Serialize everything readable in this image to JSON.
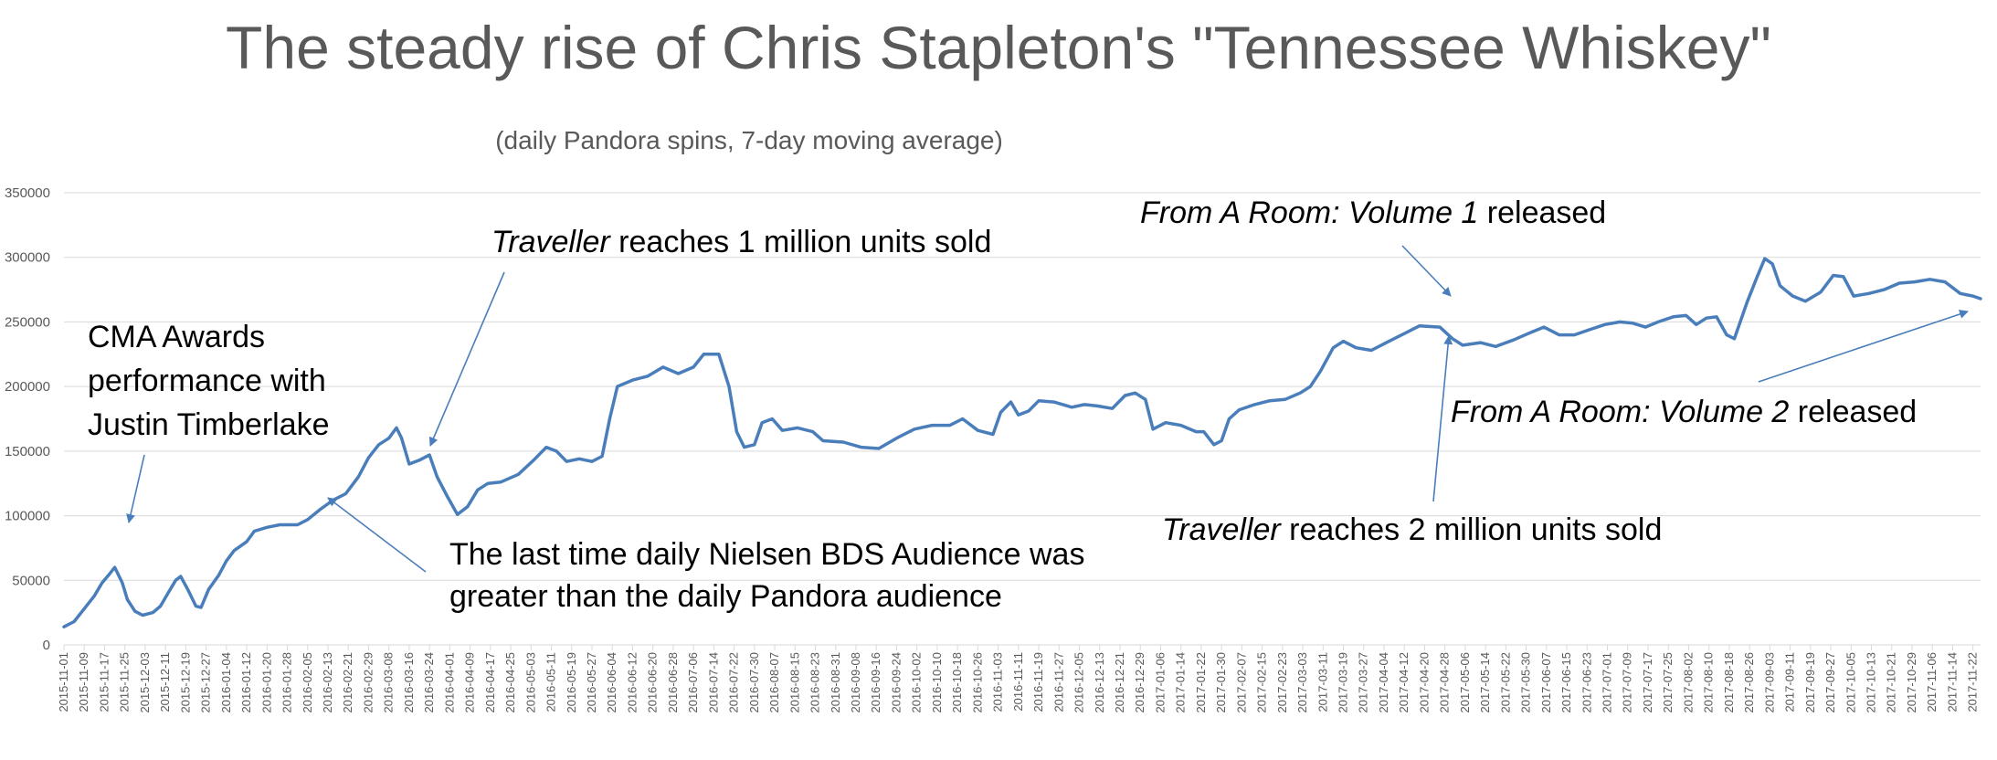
{
  "chart_data": {
    "type": "line",
    "title": "The steady rise of Chris Stapleton's \"Tennessee Whiskey\"",
    "subtitle": "(daily Pandora spins, 7-day moving average)",
    "ylim": [
      0,
      350000
    ],
    "yticks": [
      "0",
      "50000",
      "100000",
      "150000",
      "200000",
      "250000",
      "300000",
      "350000"
    ],
    "grid": true,
    "legend": "none",
    "line_color": "#4a7ebb",
    "x_start": "2015-11-01",
    "x_end": "2017-11-25",
    "xtick_labels": [
      "2015-11-01",
      "2015-11-09",
      "2015-11-17",
      "2015-11-25",
      "2015-12-03",
      "2015-12-11",
      "2015-12-19",
      "2015-12-27",
      "2016-01-04",
      "2016-01-12",
      "2016-01-20",
      "2016-01-28",
      "2016-02-05",
      "2016-02-13",
      "2016-02-21",
      "2016-02-29",
      "2016-03-08",
      "2016-03-16",
      "2016-03-24",
      "2016-04-01",
      "2016-04-09",
      "2016-04-17",
      "2016-04-25",
      "2016-05-03",
      "2016-05-11",
      "2016-05-19",
      "2016-05-27",
      "2016-06-04",
      "2016-06-12",
      "2016-06-20",
      "2016-06-28",
      "2016-07-06",
      "2016-07-14",
      "2016-07-22",
      "2016-07-30",
      "2016-08-07",
      "2016-08-15",
      "2016-08-23",
      "2016-08-31",
      "2016-09-08",
      "2016-09-16",
      "2016-09-24",
      "2016-10-02",
      "2016-10-10",
      "2016-10-18",
      "2016-10-26",
      "2016-11-03",
      "2016-11-11",
      "2016-11-19",
      "2016-11-27",
      "2016-12-05",
      "2016-12-13",
      "2016-12-21",
      "2016-12-29",
      "2017-01-06",
      "2017-01-14",
      "2017-01-22",
      "2017-01-30",
      "2017-02-07",
      "2017-02-15",
      "2017-02-23",
      "2017-03-03",
      "2017-03-11",
      "2017-03-19",
      "2017-03-27",
      "2017-04-04",
      "2017-04-12",
      "2017-04-20",
      "2017-04-28",
      "2017-05-06",
      "2017-05-14",
      "2017-05-22",
      "2017-05-30",
      "2017-06-07",
      "2017-06-15",
      "2017-06-23",
      "2017-07-01",
      "2017-07-09",
      "2017-07-17",
      "2017-07-25",
      "2017-08-02",
      "2017-08-10",
      "2017-08-18",
      "2017-08-26",
      "2017-09-03",
      "2017-09-11",
      "2017-09-19",
      "2017-09-27",
      "2017-10-05",
      "2017-10-13",
      "2017-10-21",
      "2017-10-29",
      "2017-11-06",
      "2017-11-14",
      "2017-11-22"
    ],
    "series": [
      {
        "points": [
          [
            "2015-11-01",
            14000
          ],
          [
            "2015-11-05",
            18000
          ],
          [
            "2015-11-09",
            28000
          ],
          [
            "2015-11-13",
            38000
          ],
          [
            "2015-11-16",
            48000
          ],
          [
            "2015-11-19",
            55000
          ],
          [
            "2015-11-21",
            60000
          ],
          [
            "2015-11-24",
            48000
          ],
          [
            "2015-11-26",
            35000
          ],
          [
            "2015-11-29",
            26000
          ],
          [
            "2015-12-02",
            23000
          ],
          [
            "2015-12-06",
            25000
          ],
          [
            "2015-12-09",
            30000
          ],
          [
            "2015-12-12",
            40000
          ],
          [
            "2015-12-15",
            50000
          ],
          [
            "2015-12-17",
            53000
          ],
          [
            "2015-12-20",
            42000
          ],
          [
            "2015-12-23",
            30000
          ],
          [
            "2015-12-25",
            29000
          ],
          [
            "2015-12-28",
            43000
          ],
          [
            "2016-01-01",
            54000
          ],
          [
            "2016-01-04",
            65000
          ],
          [
            "2016-01-07",
            73000
          ],
          [
            "2016-01-12",
            80000
          ],
          [
            "2016-01-15",
            88000
          ],
          [
            "2016-01-20",
            91000
          ],
          [
            "2016-01-25",
            93000
          ],
          [
            "2016-02-01",
            93000
          ],
          [
            "2016-02-05",
            97000
          ],
          [
            "2016-02-10",
            105000
          ],
          [
            "2016-02-15",
            112000
          ],
          [
            "2016-02-20",
            117000
          ],
          [
            "2016-02-25",
            130000
          ],
          [
            "2016-02-29",
            145000
          ],
          [
            "2016-03-04",
            155000
          ],
          [
            "2016-03-08",
            160000
          ],
          [
            "2016-03-11",
            168000
          ],
          [
            "2016-03-13",
            160000
          ],
          [
            "2016-03-16",
            140000
          ],
          [
            "2016-03-20",
            143000
          ],
          [
            "2016-03-24",
            147000
          ],
          [
            "2016-03-27",
            130000
          ],
          [
            "2016-03-31",
            115000
          ],
          [
            "2016-04-04",
            101000
          ],
          [
            "2016-04-08",
            107000
          ],
          [
            "2016-04-12",
            120000
          ],
          [
            "2016-04-16",
            125000
          ],
          [
            "2016-04-21",
            126000
          ],
          [
            "2016-04-28",
            132000
          ],
          [
            "2016-05-04",
            143000
          ],
          [
            "2016-05-09",
            153000
          ],
          [
            "2016-05-13",
            150000
          ],
          [
            "2016-05-17",
            142000
          ],
          [
            "2016-05-22",
            144000
          ],
          [
            "2016-05-27",
            142000
          ],
          [
            "2016-05-31",
            146000
          ],
          [
            "2016-06-03",
            175000
          ],
          [
            "2016-06-06",
            200000
          ],
          [
            "2016-06-12",
            205000
          ],
          [
            "2016-06-18",
            208000
          ],
          [
            "2016-06-24",
            215000
          ],
          [
            "2016-06-30",
            210000
          ],
          [
            "2016-07-06",
            215000
          ],
          [
            "2016-07-10",
            225000
          ],
          [
            "2016-07-16",
            225000
          ],
          [
            "2016-07-20",
            200000
          ],
          [
            "2016-07-23",
            165000
          ],
          [
            "2016-07-26",
            153000
          ],
          [
            "2016-07-30",
            155000
          ],
          [
            "2016-08-02",
            172000
          ],
          [
            "2016-08-06",
            175000
          ],
          [
            "2016-08-10",
            166000
          ],
          [
            "2016-08-16",
            168000
          ],
          [
            "2016-08-22",
            165000
          ],
          [
            "2016-08-26",
            158000
          ],
          [
            "2016-09-03",
            157000
          ],
          [
            "2016-09-10",
            153000
          ],
          [
            "2016-09-17",
            152000
          ],
          [
            "2016-09-24",
            160000
          ],
          [
            "2016-10-01",
            167000
          ],
          [
            "2016-10-08",
            170000
          ],
          [
            "2016-10-15",
            170000
          ],
          [
            "2016-10-20",
            175000
          ],
          [
            "2016-10-26",
            166000
          ],
          [
            "2016-11-01",
            163000
          ],
          [
            "2016-11-04",
            180000
          ],
          [
            "2016-11-08",
            188000
          ],
          [
            "2016-11-11",
            178000
          ],
          [
            "2016-11-15",
            181000
          ],
          [
            "2016-11-19",
            189000
          ],
          [
            "2016-11-25",
            188000
          ],
          [
            "2016-12-02",
            184000
          ],
          [
            "2016-12-07",
            186000
          ],
          [
            "2016-12-12",
            185000
          ],
          [
            "2016-12-18",
            183000
          ],
          [
            "2016-12-23",
            193000
          ],
          [
            "2016-12-27",
            195000
          ],
          [
            "2016-12-31",
            190000
          ],
          [
            "2017-01-03",
            167000
          ],
          [
            "2017-01-08",
            172000
          ],
          [
            "2017-01-14",
            170000
          ],
          [
            "2017-01-20",
            165000
          ],
          [
            "2017-01-23",
            165000
          ],
          [
            "2017-01-27",
            155000
          ],
          [
            "2017-01-30",
            158000
          ],
          [
            "2017-02-02",
            175000
          ],
          [
            "2017-02-06",
            182000
          ],
          [
            "2017-02-12",
            186000
          ],
          [
            "2017-02-18",
            189000
          ],
          [
            "2017-02-24",
            190000
          ],
          [
            "2017-03-02",
            195000
          ],
          [
            "2017-03-06",
            200000
          ],
          [
            "2017-03-10",
            212000
          ],
          [
            "2017-03-15",
            230000
          ],
          [
            "2017-03-19",
            235000
          ],
          [
            "2017-03-24",
            230000
          ],
          [
            "2017-03-30",
            228000
          ],
          [
            "2017-04-06",
            235000
          ],
          [
            "2017-04-12",
            241000
          ],
          [
            "2017-04-18",
            247000
          ],
          [
            "2017-04-26",
            246000
          ],
          [
            "2017-05-01",
            237000
          ],
          [
            "2017-05-05",
            232000
          ],
          [
            "2017-05-12",
            234000
          ],
          [
            "2017-05-18",
            231000
          ],
          [
            "2017-05-25",
            236000
          ],
          [
            "2017-06-01",
            242000
          ],
          [
            "2017-06-06",
            246000
          ],
          [
            "2017-06-12",
            240000
          ],
          [
            "2017-06-18",
            240000
          ],
          [
            "2017-06-24",
            244000
          ],
          [
            "2017-06-30",
            248000
          ],
          [
            "2017-07-06",
            250000
          ],
          [
            "2017-07-11",
            249000
          ],
          [
            "2017-07-16",
            246000
          ],
          [
            "2017-07-21",
            250000
          ],
          [
            "2017-07-27",
            254000
          ],
          [
            "2017-08-01",
            255000
          ],
          [
            "2017-08-05",
            248000
          ],
          [
            "2017-08-09",
            253000
          ],
          [
            "2017-08-13",
            254000
          ],
          [
            "2017-08-17",
            240000
          ],
          [
            "2017-08-20",
            237000
          ],
          [
            "2017-08-25",
            265000
          ],
          [
            "2017-08-29",
            285000
          ],
          [
            "2017-09-01",
            299000
          ],
          [
            "2017-09-04",
            295000
          ],
          [
            "2017-09-07",
            278000
          ],
          [
            "2017-09-12",
            270000
          ],
          [
            "2017-09-17",
            266000
          ],
          [
            "2017-09-23",
            273000
          ],
          [
            "2017-09-28",
            286000
          ],
          [
            "2017-10-02",
            285000
          ],
          [
            "2017-10-06",
            270000
          ],
          [
            "2017-10-12",
            272000
          ],
          [
            "2017-10-18",
            275000
          ],
          [
            "2017-10-24",
            280000
          ],
          [
            "2017-10-30",
            281000
          ],
          [
            "2017-11-05",
            283000
          ],
          [
            "2017-11-11",
            281000
          ],
          [
            "2017-11-17",
            272000
          ],
          [
            "2017-11-22",
            270000
          ],
          [
            "2017-11-25",
            268000
          ]
        ]
      }
    ]
  },
  "annotations": {
    "cma": [
      "CMA Awards",
      "performance with",
      "Justin Timberlake"
    ],
    "traveller1_italic": "Traveller",
    "traveller1_rest": " reaches 1 million units sold",
    "nielsen": [
      "The last time daily Nielsen BDS Audience was",
      "greater than the daily Pandora audience"
    ],
    "room1_italic": "From A Room: Volume 1",
    "room1_rest": " released",
    "room2_italic": "From A Room: Volume 2",
    "room2_rest": " released",
    "traveller2_italic": "Traveller",
    "traveller2_rest": " reaches 2 million units sold"
  }
}
